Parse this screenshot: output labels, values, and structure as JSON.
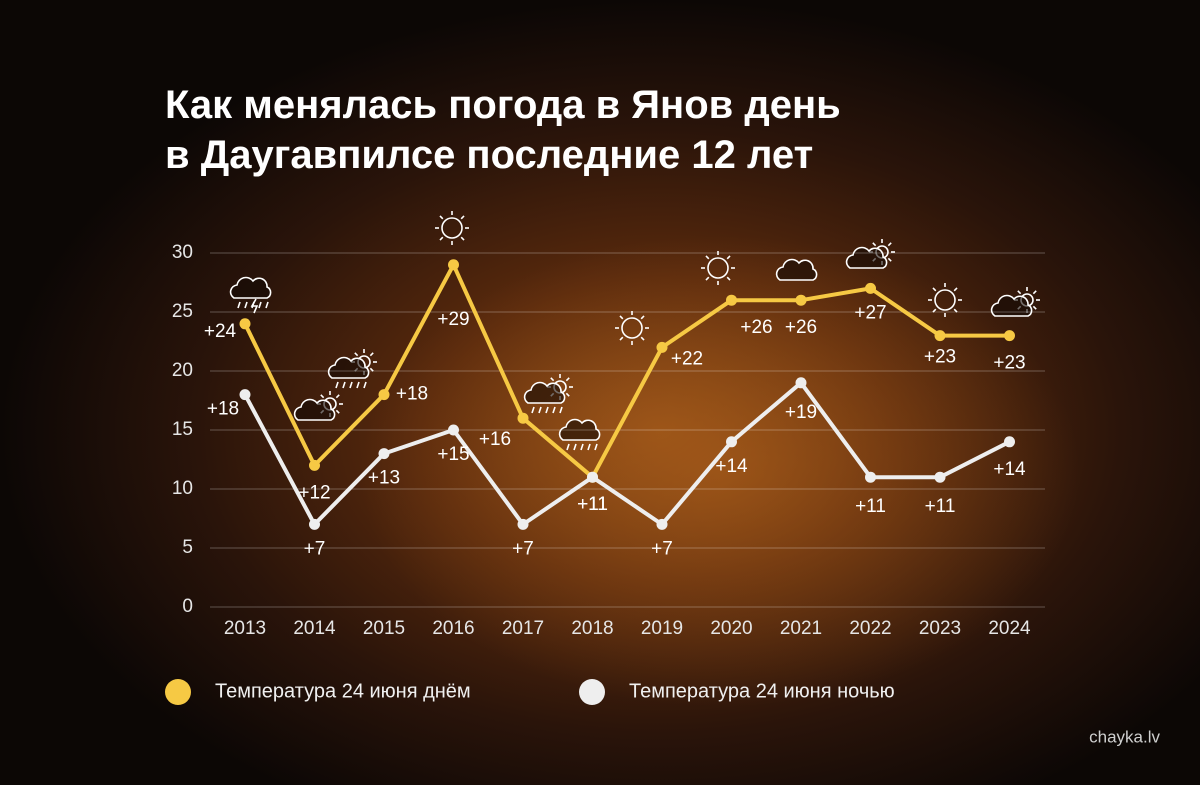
{
  "chart_data": {
    "type": "line",
    "title": [
      "Как менялась погода в Янов день",
      "в Даугавпилсе последние 12 лет"
    ],
    "categories": [
      "2013",
      "2014",
      "2015",
      "2016",
      "2017",
      "2018",
      "2019",
      "2020",
      "2021",
      "2022",
      "2023",
      "2024"
    ],
    "series": [
      {
        "name": "Температура 24 июня днём",
        "color": "#f6c944",
        "values": [
          24,
          12,
          18,
          29,
          16,
          11,
          22,
          26,
          26,
          27,
          23,
          23
        ],
        "value_labels": [
          "+24",
          "+12",
          "+18",
          "+29",
          "+16",
          "+11",
          "+22",
          "+26",
          "+26",
          "+27",
          "+23",
          "+23"
        ]
      },
      {
        "name": "Температура 24 июня ночью",
        "color": "#eeeeee",
        "values": [
          18,
          7,
          13,
          15,
          7,
          11,
          7,
          14,
          19,
          11,
          11,
          14
        ],
        "value_labels": [
          "+18",
          "+7",
          "+13",
          "+15",
          "+7",
          "+11",
          "+7",
          "+14",
          "+19",
          "+11",
          "+11",
          "+14"
        ]
      }
    ],
    "ylim": [
      0,
      30
    ],
    "yticks": [
      0,
      5,
      10,
      15,
      20,
      25,
      30
    ],
    "grid": true,
    "watermark": "chayka.lv"
  }
}
